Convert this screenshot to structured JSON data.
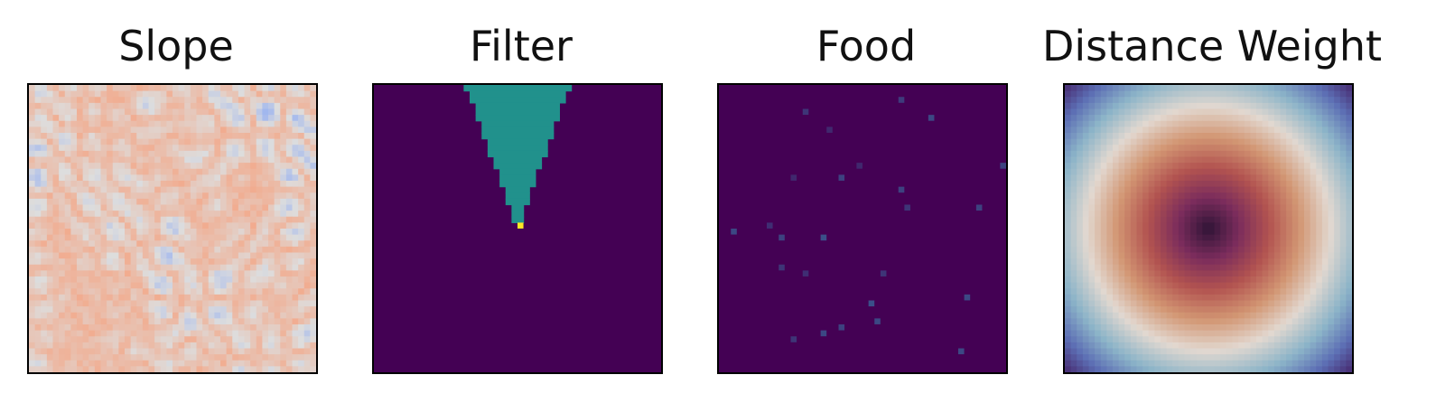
{
  "chart_data": [
    {
      "type": "heatmap",
      "title": "Slope",
      "colormap": "coolwarm",
      "grid": false,
      "axes_visible": false,
      "value_range": [
        0,
        1
      ],
      "description_of_field": "noisy terrain slope field"
    },
    {
      "type": "heatmap",
      "title": "Filter",
      "colormap": "viridis",
      "grid": false,
      "axes_visible": false,
      "value_range": [
        0,
        1
      ],
      "cone": {
        "apex": [
          0.5,
          0.49
        ],
        "spread_half_angle_deg": 20,
        "fill_value": 0.5,
        "apex_value": 1.0
      }
    },
    {
      "type": "heatmap",
      "title": "Food",
      "colormap": "viridis",
      "grid": false,
      "axes_visible": false,
      "value_range": [
        0,
        1
      ],
      "points": [
        {
          "x": 0.64,
          "y": 0.05,
          "v": 0.18
        },
        {
          "x": 0.74,
          "y": 0.11,
          "v": 0.22
        },
        {
          "x": 0.31,
          "y": 0.09,
          "v": 0.16
        },
        {
          "x": 0.39,
          "y": 0.15,
          "v": 0.12
        },
        {
          "x": 0.98,
          "y": 0.28,
          "v": 0.2
        },
        {
          "x": 0.48,
          "y": 0.28,
          "v": 0.12
        },
        {
          "x": 0.42,
          "y": 0.32,
          "v": 0.2
        },
        {
          "x": 0.27,
          "y": 0.32,
          "v": 0.12
        },
        {
          "x": 0.64,
          "y": 0.37,
          "v": 0.2
        },
        {
          "x": 0.66,
          "y": 0.43,
          "v": 0.16
        },
        {
          "x": 0.91,
          "y": 0.43,
          "v": 0.2
        },
        {
          "x": 0.05,
          "y": 0.51,
          "v": 0.22
        },
        {
          "x": 0.18,
          "y": 0.49,
          "v": 0.14
        },
        {
          "x": 0.22,
          "y": 0.54,
          "v": 0.2
        },
        {
          "x": 0.37,
          "y": 0.54,
          "v": 0.24
        },
        {
          "x": 0.22,
          "y": 0.64,
          "v": 0.16
        },
        {
          "x": 0.31,
          "y": 0.66,
          "v": 0.14
        },
        {
          "x": 0.58,
          "y": 0.66,
          "v": 0.16
        },
        {
          "x": 0.54,
          "y": 0.75,
          "v": 0.24
        },
        {
          "x": 0.87,
          "y": 0.73,
          "v": 0.22
        },
        {
          "x": 0.56,
          "y": 0.82,
          "v": 0.22
        },
        {
          "x": 0.43,
          "y": 0.84,
          "v": 0.2
        },
        {
          "x": 0.37,
          "y": 0.86,
          "v": 0.22
        },
        {
          "x": 0.27,
          "y": 0.88,
          "v": 0.16
        },
        {
          "x": 0.84,
          "y": 0.92,
          "v": 0.22
        }
      ]
    },
    {
      "type": "heatmap",
      "title": "Distance Weight",
      "colormap": "twilight",
      "grid": false,
      "axes_visible": false,
      "value_range": [
        0,
        1
      ],
      "radial": true
    }
  ]
}
